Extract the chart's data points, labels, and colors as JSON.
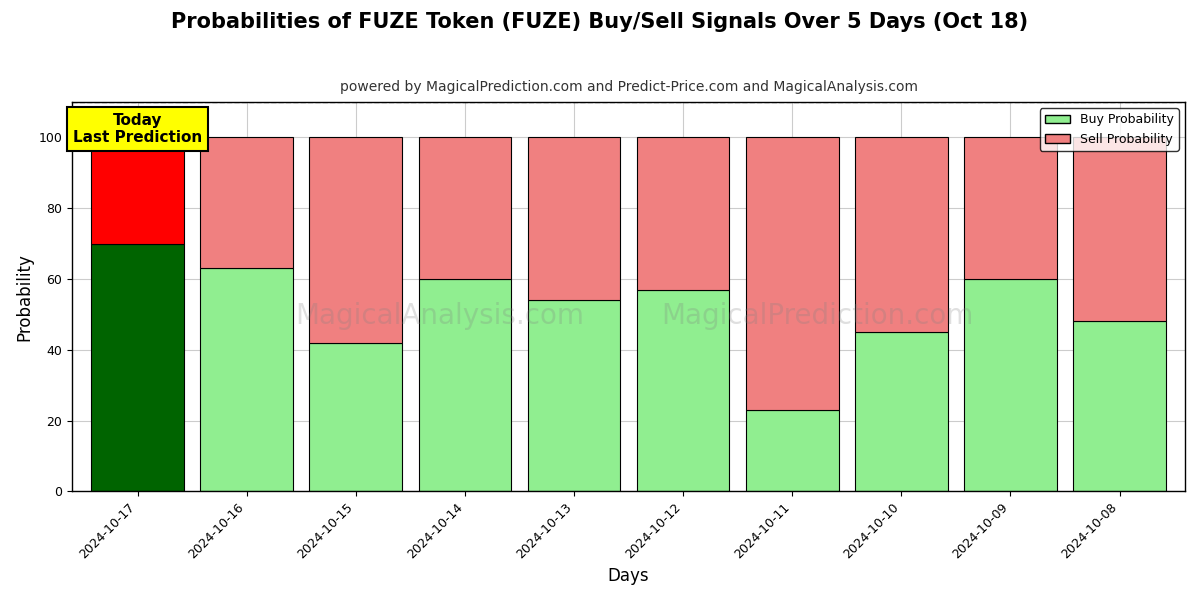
{
  "title": "Probabilities of FUZE Token (FUZE) Buy/Sell Signals Over 5 Days (Oct 18)",
  "subtitle": "powered by MagicalPrediction.com and Predict-Price.com and MagicalAnalysis.com",
  "xlabel": "Days",
  "ylabel": "Probability",
  "watermark1": "MagicalAnalysis.com",
  "watermark2": "MagicalPrediction.com",
  "categories": [
    "2024-10-17",
    "2024-10-16",
    "2024-10-15",
    "2024-10-14",
    "2024-10-13",
    "2024-10-12",
    "2024-10-11",
    "2024-10-10",
    "2024-10-09",
    "2024-10-08"
  ],
  "buy_values": [
    70,
    63,
    42,
    60,
    54,
    57,
    23,
    45,
    60,
    48
  ],
  "sell_values": [
    30,
    37,
    58,
    40,
    46,
    43,
    77,
    55,
    40,
    52
  ],
  "buy_colors_first": "#006400",
  "sell_colors_first": "#FF0000",
  "buy_colors_rest": "#90EE90",
  "sell_colors_rest": "#F08080",
  "bar_edge_color": "#000000",
  "ylim": [
    0,
    110
  ],
  "yticks": [
    0,
    20,
    40,
    60,
    80,
    100
  ],
  "dashed_line_y": 110,
  "legend_buy_label": "Buy Probability",
  "legend_sell_label": "Sell Probability",
  "today_label": "Today\nLast Prediction",
  "today_box_color": "#FFFF00",
  "background_color": "#ffffff",
  "grid_color": "#cccccc",
  "title_fontsize": 15,
  "subtitle_fontsize": 10,
  "axis_label_fontsize": 12,
  "tick_fontsize": 9,
  "bar_width": 0.85
}
